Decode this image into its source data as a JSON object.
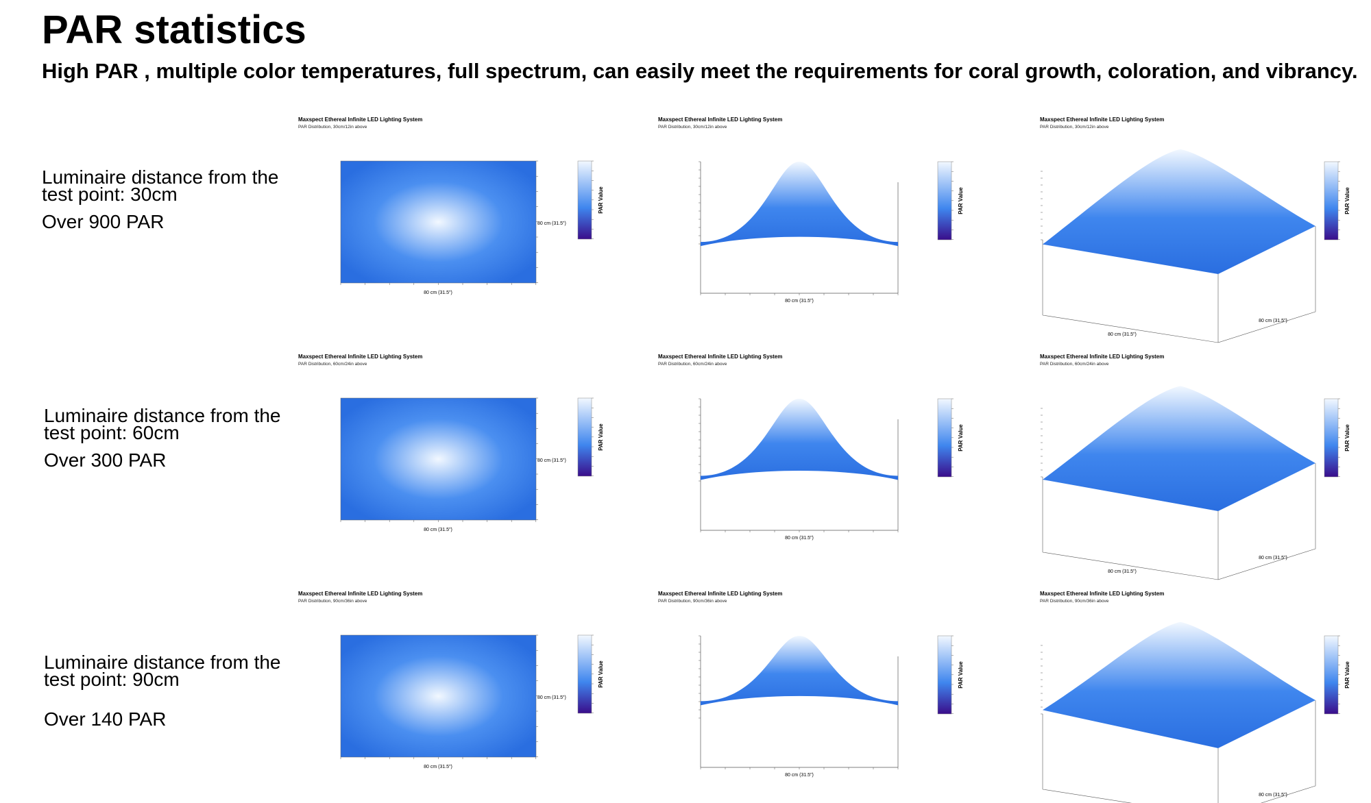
{
  "header": {
    "title": "PAR statistics",
    "subtitle": "High PAR , multiple color temperatures, full spectrum, can easily meet the requirements for coral growth, coloration, and vibrancy."
  },
  "rows": [
    {
      "distance_label": "Luminaire distance from the test point: 30cm",
      "par_label": "Over 900 PAR"
    },
    {
      "distance_label": "Luminaire distance from the test point: 60cm",
      "par_label": "Over 300 PAR"
    },
    {
      "distance_label": "Luminaire distance from the test point: 90cm",
      "par_label": "Over 140 PAR"
    }
  ],
  "colors": {
    "low": "#3a0d8a",
    "mid": "#2a6ee0",
    "high": "#f2f8ff"
  },
  "chart_data": [
    {
      "type": "heatmap",
      "view": "top",
      "title": "Maxspect Ethereal Infinite LED Lighting System",
      "subtitle": "PAR Distribution, 30cm/12in above",
      "xlabel": "80 cm (31.5\")",
      "ylabel": "80 cm (31.5\")",
      "colorbar_label": "PAR Value",
      "vmax": 900,
      "edge": 200
    },
    {
      "type": "area",
      "view": "side",
      "title": "Maxspect Ethereal Infinite LED Lighting System",
      "subtitle": "PAR Distribution, 30cm/12in above",
      "xlabel": "80 cm (31.5\")",
      "colorbar_label": "PAR Value",
      "vmax": 900,
      "edge": 200
    },
    {
      "type": "area",
      "view": "3d",
      "title": "Maxspect Ethereal Infinite LED Lighting System",
      "subtitle": "PAR Distribution, 30cm/12in above",
      "xlabel": "80 cm (31.5\")",
      "ylabel": "80 cm (31.5\")",
      "colorbar_label": "PAR Value",
      "vmax": 900,
      "edge": 200
    },
    {
      "type": "heatmap",
      "view": "top",
      "title": "Maxspect Ethereal Infinite LED Lighting System",
      "subtitle": "PAR Distribution, 60cm/24in above",
      "xlabel": "80 cm (31.5\")",
      "ylabel": "80 cm (31.5\")",
      "colorbar_label": "PAR Value",
      "vmax": 300,
      "edge": 80
    },
    {
      "type": "area",
      "view": "side",
      "title": "Maxspect Ethereal Infinite LED Lighting System",
      "subtitle": "PAR Distribution, 60cm/24in above",
      "xlabel": "80 cm (31.5\")",
      "colorbar_label": "PAR Value",
      "vmax": 300,
      "edge": 80
    },
    {
      "type": "area",
      "view": "3d",
      "title": "Maxspect Ethereal Infinite LED Lighting System",
      "subtitle": "PAR Distribution, 60cm/24in above",
      "xlabel": "80 cm (31.5\")",
      "ylabel": "80 cm (31.5\")",
      "colorbar_label": "PAR Value",
      "vmax": 300,
      "edge": 80
    },
    {
      "type": "heatmap",
      "view": "top",
      "title": "Maxspect Ethereal Infinite LED Lighting System",
      "subtitle": "PAR Distribution, 90cm/36in above",
      "xlabel": "80 cm (31.5\")",
      "ylabel": "80 cm (31.5\")",
      "colorbar_label": "PAR Value",
      "vmax": 140,
      "edge": 60
    },
    {
      "type": "area",
      "view": "side",
      "title": "Maxspect Ethereal Infinite LED Lighting System",
      "subtitle": "PAR Distribution, 90cm/36in above",
      "xlabel": "80 cm (31.5\")",
      "colorbar_label": "PAR Value",
      "vmax": 140,
      "edge": 60
    },
    {
      "type": "area",
      "view": "3d",
      "title": "Maxspect Ethereal Infinite LED Lighting System",
      "subtitle": "PAR Distribution, 90cm/36in above",
      "xlabel": "80 cm (31.5\")",
      "ylabel": "80 cm (31.5\")",
      "colorbar_label": "PAR Value",
      "vmax": 140,
      "edge": 60
    }
  ]
}
